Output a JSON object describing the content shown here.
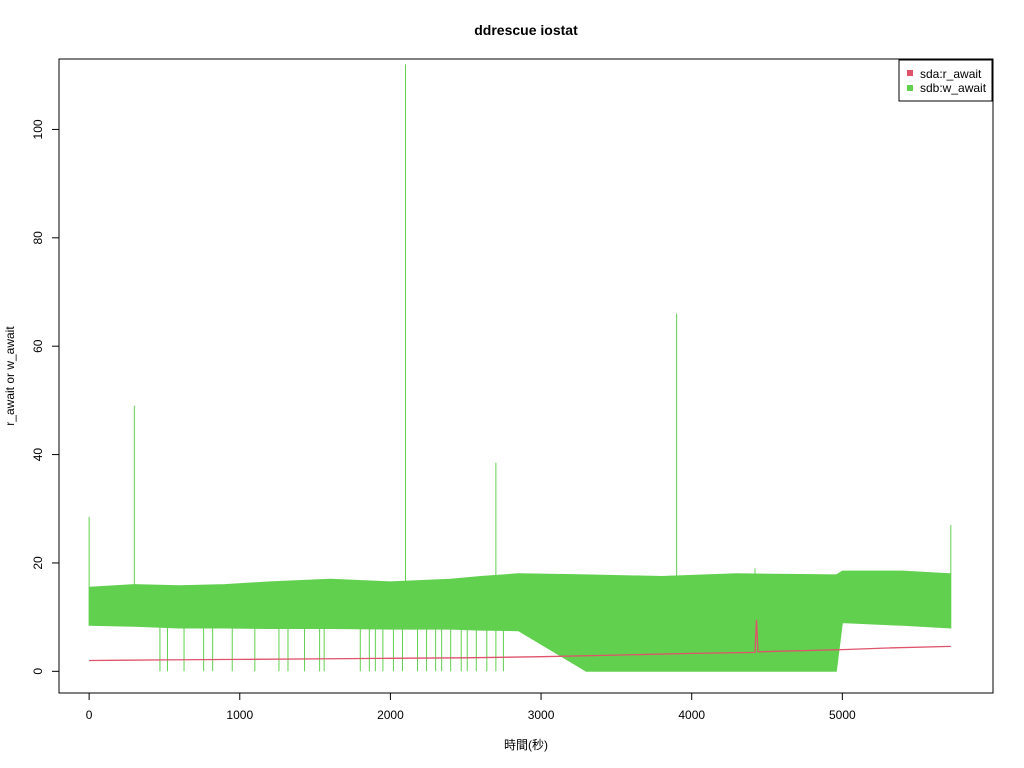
{
  "chart_data": {
    "type": "line",
    "title": "ddrescue iostat",
    "xlabel": "時間(秒)",
    "ylabel": "r_await or w_await",
    "xlim": [
      -200,
      6000
    ],
    "ylim": [
      -4,
      113
    ],
    "xticks": [
      0,
      1000,
      2000,
      3000,
      4000,
      5000
    ],
    "yticks": [
      0,
      20,
      40,
      60,
      80,
      100
    ],
    "legend_position": "top-right",
    "series": [
      {
        "name": "sdb:w_await",
        "color": "#61D04F",
        "envelope": [
          {
            "x": 0,
            "low": 8.5,
            "high": 15.5
          },
          {
            "x": 300,
            "low": 8.3,
            "high": 16.0
          },
          {
            "x": 600,
            "low": 8.0,
            "high": 15.8
          },
          {
            "x": 900,
            "low": 8.0,
            "high": 16.0
          },
          {
            "x": 1200,
            "low": 7.9,
            "high": 16.5
          },
          {
            "x": 1600,
            "low": 7.9,
            "high": 17.0
          },
          {
            "x": 2000,
            "low": 7.8,
            "high": 16.5
          },
          {
            "x": 2400,
            "low": 7.8,
            "high": 17.0
          },
          {
            "x": 2600,
            "low": 7.6,
            "high": 17.5
          },
          {
            "x": 2850,
            "low": 7.5,
            "high": 18.0
          },
          {
            "x": 3300,
            "low": 0.0,
            "high": 17.8
          },
          {
            "x": 3800,
            "low": 0.0,
            "high": 17.5
          },
          {
            "x": 4300,
            "low": 0.0,
            "high": 18.0
          },
          {
            "x": 4960,
            "low": 0.0,
            "high": 17.8
          },
          {
            "x": 5000,
            "low": 9.0,
            "high": 18.5
          },
          {
            "x": 5400,
            "low": 8.5,
            "high": 18.5
          },
          {
            "x": 5720,
            "low": 8.0,
            "high": 18.0
          }
        ],
        "spikes": [
          {
            "x": 0,
            "y": 28.5
          },
          {
            "x": 300,
            "y": 49
          },
          {
            "x": 2100,
            "y": 112
          },
          {
            "x": 2700,
            "y": 38.5
          },
          {
            "x": 3900,
            "y": 66
          },
          {
            "x": 4420,
            "y": 19
          },
          {
            "x": 5720,
            "y": 27
          }
        ],
        "dropouts_to_zero": [
          470,
          520,
          630,
          760,
          820,
          950,
          1100,
          1260,
          1320,
          1430,
          1530,
          1560,
          1800,
          1860,
          1900,
          1950,
          2020,
          2080,
          2180,
          2240,
          2300,
          2340,
          2400,
          2470,
          2510,
          2570,
          2640,
          2700,
          2750
        ]
      },
      {
        "name": "sda:r_await",
        "color": "#DF536B",
        "values": [
          {
            "x": 0,
            "y": 2.0
          },
          {
            "x": 500,
            "y": 2.1
          },
          {
            "x": 1000,
            "y": 2.2
          },
          {
            "x": 1500,
            "y": 2.3
          },
          {
            "x": 2000,
            "y": 2.4
          },
          {
            "x": 2500,
            "y": 2.5
          },
          {
            "x": 3000,
            "y": 2.7
          },
          {
            "x": 3500,
            "y": 3.0
          },
          {
            "x": 4000,
            "y": 3.3
          },
          {
            "x": 4420,
            "y": 3.5
          },
          {
            "x": 4430,
            "y": 9.5
          },
          {
            "x": 4440,
            "y": 3.6
          },
          {
            "x": 5000,
            "y": 4.0
          },
          {
            "x": 5300,
            "y": 4.3
          },
          {
            "x": 5720,
            "y": 4.6
          }
        ]
      }
    ]
  }
}
